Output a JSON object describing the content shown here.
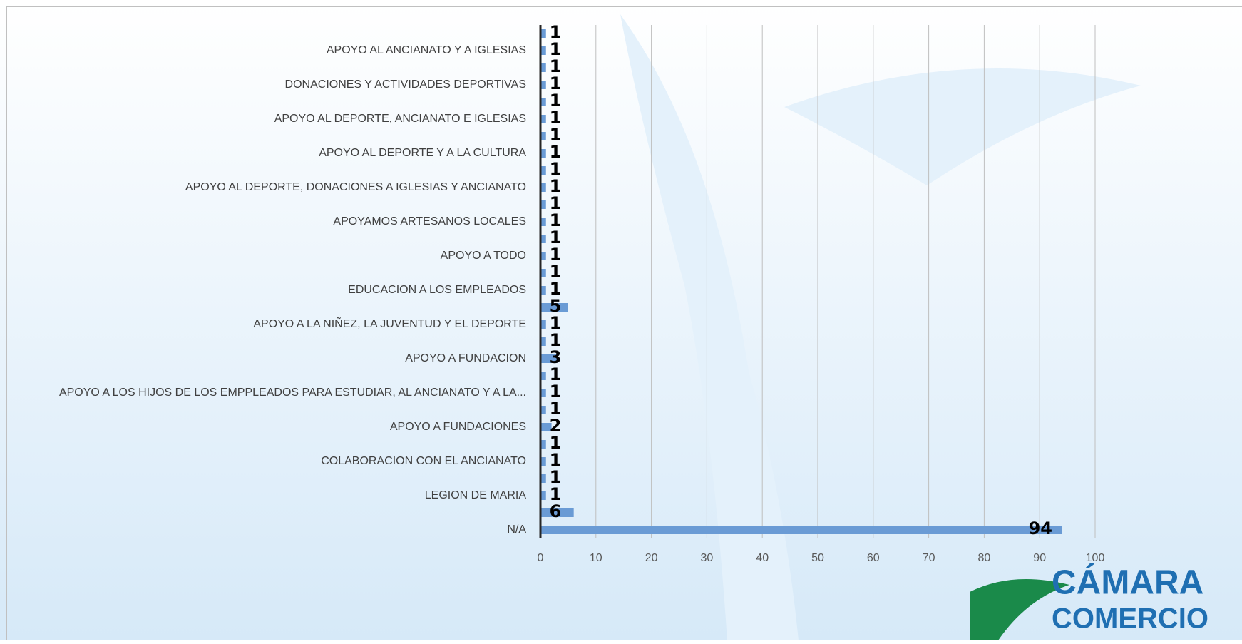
{
  "chart_data": {
    "type": "bar",
    "orientation": "horizontal",
    "categories": [
      null,
      "APOYO AL ANCIANATO Y A IGLESIAS",
      null,
      "DONACIONES Y ACTIVIDADES DEPORTIVAS",
      null,
      "APOYO AL DEPORTE, ANCIANATO E IGLESIAS",
      null,
      "APOYO AL DEPORTE Y A LA CULTURA",
      null,
      "APOYO AL DEPORTE, DONACIONES A IGLESIAS Y ANCIANATO",
      null,
      "APOYAMOS ARTESANOS LOCALES",
      null,
      "APOYO A TODO",
      null,
      "EDUCACION A LOS EMPLEADOS",
      null,
      "APOYO A LA NIÑEZ, LA JUVENTUD Y EL DEPORTE",
      null,
      "APOYO A FUNDACION",
      null,
      "APOYO A LOS HIJOS DE LOS EMPPLEADOS PARA ESTUDIAR, AL ANCIANATO Y A LA...",
      null,
      "APOYO A FUNDACIONES",
      null,
      "COLABORACION CON EL ANCIANATO",
      null,
      "LEGION DE MARIA",
      null,
      "N/A"
    ],
    "values": [
      1,
      1,
      1,
      1,
      1,
      1,
      1,
      1,
      1,
      1,
      1,
      1,
      1,
      1,
      1,
      1,
      5,
      1,
      1,
      3,
      1,
      1,
      1,
      2,
      1,
      1,
      1,
      1,
      6,
      94
    ],
    "color": "#6a9bd5",
    "xlim": [
      0,
      100
    ],
    "xticks": [
      0,
      10,
      20,
      30,
      40,
      50,
      60,
      70,
      80,
      90,
      100
    ],
    "grid": true
  },
  "logo": {
    "text": "CÁMARA",
    "subtext": "COMERCIO"
  }
}
